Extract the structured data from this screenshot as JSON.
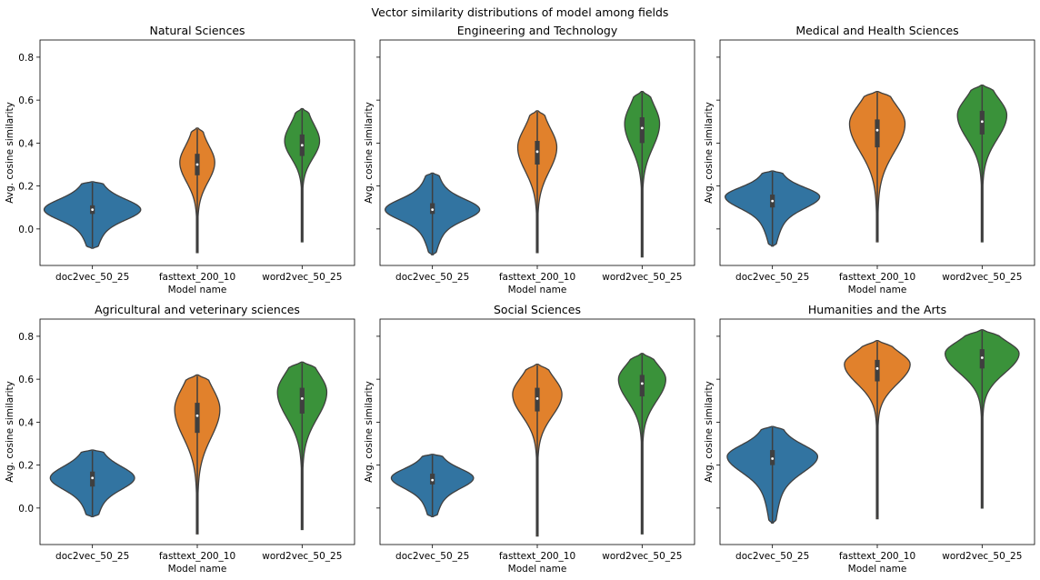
{
  "figure": {
    "suptitle": "Vector similarity distributions of model among fields"
  },
  "chart_data": {
    "type": "violin",
    "shared": {
      "categories": [
        "doc2vec_50_25",
        "fasttext_200_10",
        "word2vec_50_25"
      ],
      "colors": [
        "#3274a1",
        "#e1812c",
        "#3a923a"
      ],
      "xlabel": "Model name",
      "ylabel": "Avg. cosine similarity",
      "ylim": [
        -0.17,
        0.88
      ],
      "yticks": [
        0.0,
        0.2,
        0.4,
        0.6,
        0.8
      ],
      "ytick_labels": [
        "0.0",
        "0.2",
        "0.4",
        "0.6",
        "0.8"
      ],
      "sharey": true
    },
    "panels": [
      {
        "title": "Natural Sciences",
        "series": [
          {
            "name": "doc2vec_50_25",
            "min": -0.09,
            "max": 0.22,
            "median": 0.09,
            "q1": 0.07,
            "q3": 0.11,
            "mode": 0.09,
            "width": 0.47,
            "spread_low": 0.045,
            "spread_high": 0.045,
            "tail_low": 0.35,
            "tail_high": 0.35
          },
          {
            "name": "fasttext_200_10",
            "min": -0.11,
            "max": 0.47,
            "median": 0.3,
            "q1": 0.25,
            "q3": 0.35,
            "mode": 0.31,
            "width": 0.17,
            "spread_low": 0.09,
            "spread_high": 0.07,
            "tail_low": 0.05,
            "tail_high": 0.35
          },
          {
            "name": "word2vec_50_25",
            "min": -0.06,
            "max": 0.56,
            "median": 0.39,
            "q1": 0.34,
            "q3": 0.44,
            "mode": 0.41,
            "width": 0.17,
            "spread_low": 0.08,
            "spread_high": 0.07,
            "tail_low": 0.04,
            "tail_high": 0.35
          }
        ]
      },
      {
        "title": "Engineering and Technology",
        "series": [
          {
            "name": "doc2vec_50_25",
            "min": -0.12,
            "max": 0.26,
            "median": 0.09,
            "q1": 0.07,
            "q3": 0.12,
            "mode": 0.09,
            "width": 0.46,
            "spread_low": 0.045,
            "spread_high": 0.045,
            "tail_low": 0.35,
            "tail_high": 0.35
          },
          {
            "name": "fasttext_200_10",
            "min": -0.11,
            "max": 0.55,
            "median": 0.36,
            "q1": 0.3,
            "q3": 0.41,
            "mode": 0.38,
            "width": 0.19,
            "spread_low": 0.11,
            "spread_high": 0.08,
            "tail_low": 0.04,
            "tail_high": 0.35
          },
          {
            "name": "word2vec_50_25",
            "min": -0.13,
            "max": 0.64,
            "median": 0.47,
            "q1": 0.4,
            "q3": 0.52,
            "mode": 0.49,
            "width": 0.17,
            "spread_low": 0.11,
            "spread_high": 0.08,
            "tail_low": 0.04,
            "tail_high": 0.35
          }
        ]
      },
      {
        "title": "Medical and Health Sciences",
        "series": [
          {
            "name": "doc2vec_50_25",
            "min": -0.08,
            "max": 0.27,
            "median": 0.13,
            "q1": 0.1,
            "q3": 0.16,
            "mode": 0.15,
            "width": 0.46,
            "spread_low": 0.05,
            "spread_high": 0.04,
            "tail_low": 0.35,
            "tail_high": 0.35
          },
          {
            "name": "fasttext_200_10",
            "min": -0.06,
            "max": 0.64,
            "median": 0.46,
            "q1": 0.38,
            "q3": 0.51,
            "mode": 0.49,
            "width": 0.27,
            "spread_low": 0.13,
            "spread_high": 0.08,
            "tail_low": 0.05,
            "tail_high": 0.35
          },
          {
            "name": "word2vec_50_25",
            "min": -0.06,
            "max": 0.67,
            "median": 0.5,
            "q1": 0.44,
            "q3": 0.55,
            "mode": 0.53,
            "width": 0.24,
            "spread_low": 0.11,
            "spread_high": 0.07,
            "tail_low": 0.04,
            "tail_high": 0.35
          }
        ]
      },
      {
        "title": "Agricultural and veterinary sciences",
        "series": [
          {
            "name": "doc2vec_50_25",
            "min": -0.04,
            "max": 0.27,
            "median": 0.14,
            "q1": 0.1,
            "q3": 0.17,
            "mode": 0.14,
            "width": 0.41,
            "spread_low": 0.05,
            "spread_high": 0.05,
            "tail_low": 0.35,
            "tail_high": 0.35
          },
          {
            "name": "fasttext_200_10",
            "min": -0.12,
            "max": 0.62,
            "median": 0.43,
            "q1": 0.35,
            "q3": 0.49,
            "mode": 0.46,
            "width": 0.22,
            "spread_low": 0.13,
            "spread_high": 0.09,
            "tail_low": 0.05,
            "tail_high": 0.35
          },
          {
            "name": "word2vec_50_25",
            "min": -0.1,
            "max": 0.68,
            "median": 0.51,
            "q1": 0.44,
            "q3": 0.56,
            "mode": 0.54,
            "width": 0.24,
            "spread_low": 0.12,
            "spread_high": 0.08,
            "tail_low": 0.04,
            "tail_high": 0.35
          }
        ]
      },
      {
        "title": "Social Sciences",
        "series": [
          {
            "name": "doc2vec_50_25",
            "min": -0.04,
            "max": 0.25,
            "median": 0.13,
            "q1": 0.11,
            "q3": 0.16,
            "mode": 0.14,
            "width": 0.4,
            "spread_low": 0.045,
            "spread_high": 0.04,
            "tail_low": 0.35,
            "tail_high": 0.35
          },
          {
            "name": "fasttext_200_10",
            "min": -0.13,
            "max": 0.67,
            "median": 0.51,
            "q1": 0.45,
            "q3": 0.56,
            "mode": 0.53,
            "width": 0.24,
            "spread_low": 0.1,
            "spread_high": 0.07,
            "tail_low": 0.04,
            "tail_high": 0.35
          },
          {
            "name": "word2vec_50_25",
            "min": -0.12,
            "max": 0.72,
            "median": 0.58,
            "q1": 0.52,
            "q3": 0.62,
            "mode": 0.6,
            "width": 0.23,
            "spread_low": 0.1,
            "spread_high": 0.06,
            "tail_low": 0.04,
            "tail_high": 0.35
          }
        ]
      },
      {
        "title": "Humanities and the Arts",
        "series": [
          {
            "name": "doc2vec_50_25",
            "min": -0.07,
            "max": 0.38,
            "median": 0.23,
            "q1": 0.2,
            "q3": 0.27,
            "mode": 0.24,
            "width": 0.44,
            "spread_low": 0.07,
            "spread_high": 0.05,
            "tail_low": 0.3,
            "tail_high": 0.35
          },
          {
            "name": "fasttext_200_10",
            "min": -0.05,
            "max": 0.78,
            "median": 0.65,
            "q1": 0.59,
            "q3": 0.69,
            "mode": 0.67,
            "width": 0.32,
            "spread_low": 0.09,
            "spread_high": 0.05,
            "tail_low": 0.04,
            "tail_high": 0.35
          },
          {
            "name": "word2vec_50_25",
            "min": 0.0,
            "max": 0.83,
            "median": 0.7,
            "q1": 0.65,
            "q3": 0.74,
            "mode": 0.72,
            "width": 0.36,
            "spread_low": 0.09,
            "spread_high": 0.05,
            "tail_low": 0.04,
            "tail_high": 0.35
          }
        ]
      }
    ]
  }
}
